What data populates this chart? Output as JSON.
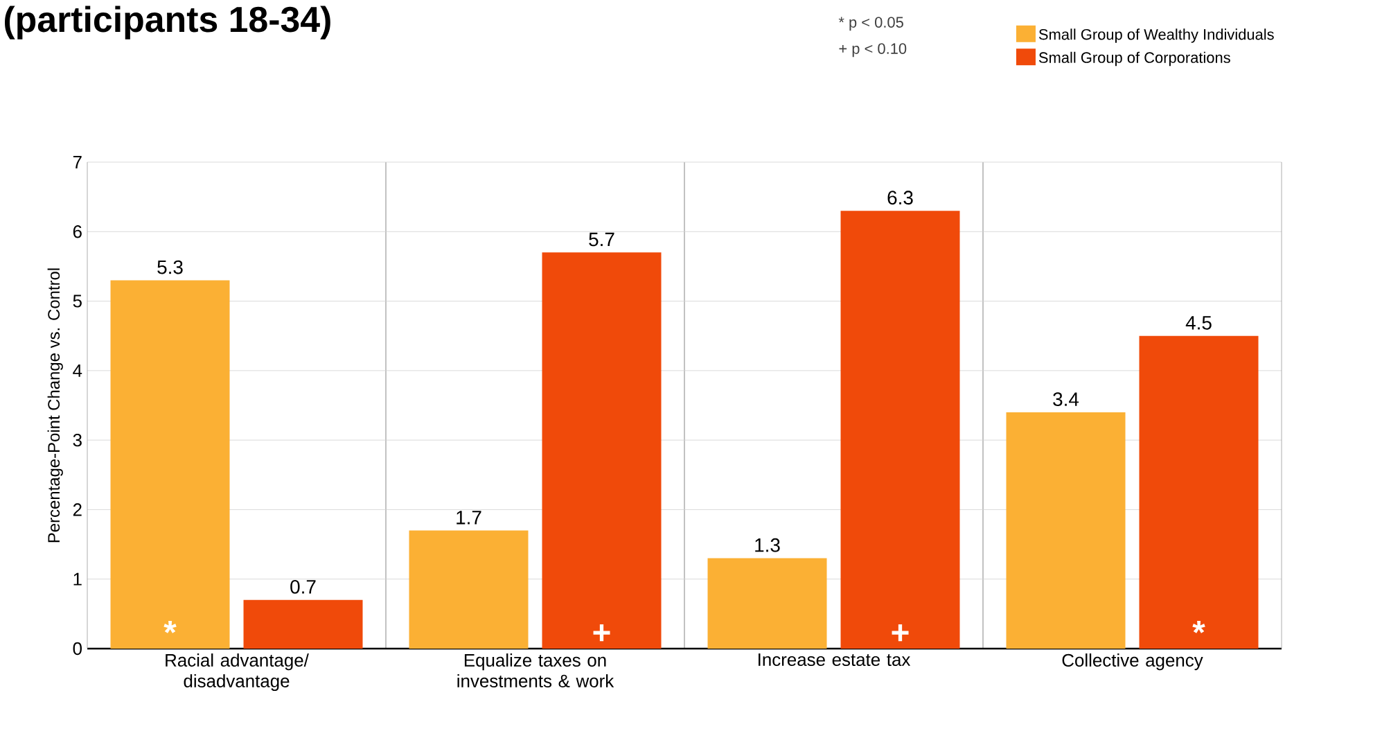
{
  "chart_data": {
    "type": "bar",
    "title": "(participants 18-34)",
    "ylabel": "Percentage-Point Change vs. Control",
    "categories": [
      "Racial advantage/ disadvantage",
      "Equalize taxes on investments & work",
      "Increase estate tax",
      "Collective agency"
    ],
    "series": [
      {
        "name": "Small Group of Wealthy Individuals",
        "color": "#fbb034",
        "values": [
          5.3,
          1.7,
          1.3,
          3.4
        ]
      },
      {
        "name": "Small Group of Corporations",
        "color": "#f04a0a",
        "values": [
          0.7,
          5.7,
          6.3,
          4.5
        ]
      }
    ],
    "ylim": [
      0,
      7
    ],
    "yticks": [
      0,
      1,
      2,
      3,
      4,
      5,
      6,
      7
    ],
    "grid": true,
    "legend": "top right",
    "data_labels": true,
    "annotations": [
      "* p < 0.05",
      "+ p < 0.10",
      "*",
      "+",
      "+",
      "*"
    ]
  }
}
